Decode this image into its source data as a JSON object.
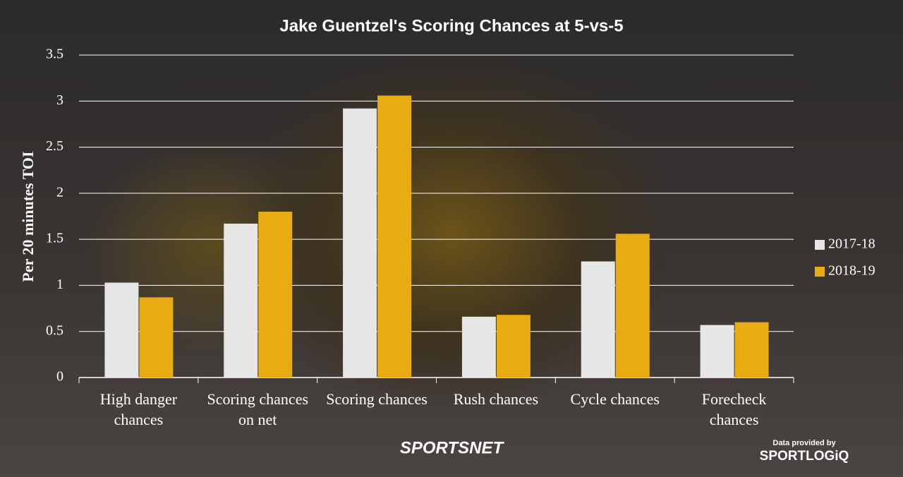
{
  "chart_data": {
    "type": "bar",
    "title": "Jake Guentzel's Scoring Chances at 5-vs-5",
    "y_label": "Per 20 minutes TOI",
    "categories": [
      "High danger chances",
      "Scoring chances on net",
      "Scoring chances",
      "Rush chances",
      "Cycle chances",
      "Forecheck chances"
    ],
    "series": [
      {
        "name": "2017-18",
        "color": "#e6e6e6",
        "values": [
          1.03,
          1.67,
          2.92,
          0.66,
          1.26,
          0.57
        ]
      },
      {
        "name": "2018-19",
        "color": "#e8ab12",
        "values": [
          0.87,
          1.8,
          3.06,
          0.68,
          1.56,
          0.6
        ]
      }
    ],
    "ylim": [
      0,
      3.5
    ],
    "yticks": [
      0,
      0.5,
      1,
      1.5,
      2,
      2.5,
      3,
      3.5
    ],
    "grid": true,
    "legend": "right"
  },
  "branding": {
    "broadcaster": "SPORTSNET",
    "credit": "Data provided by",
    "provider": "SPORTLOGiQ"
  }
}
